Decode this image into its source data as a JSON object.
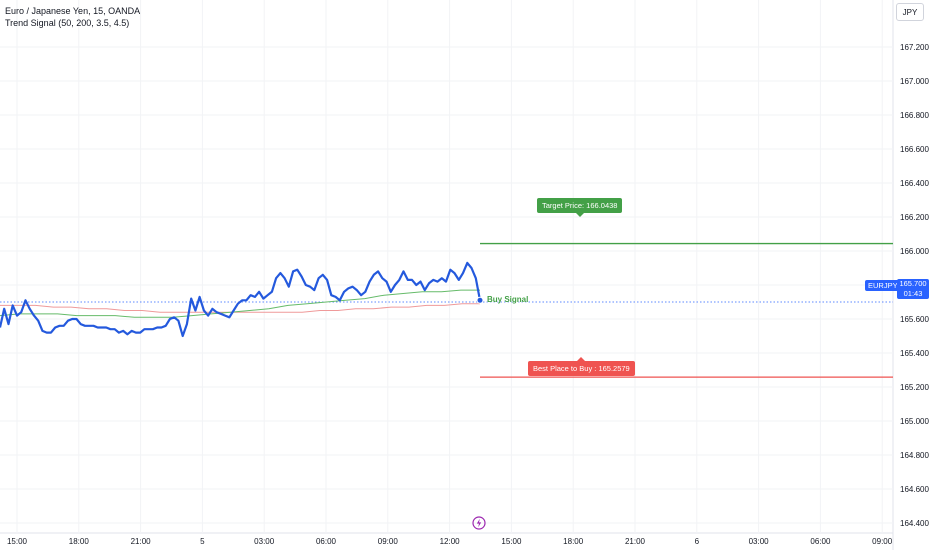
{
  "legend": {
    "title": "Euro / Japanese Yen, 15, OANDA",
    "indicator": "Trend Signal (50, 200, 3.5, 4.5)"
  },
  "currency": "JPY",
  "symbol_tag": "EURJPY",
  "price_tag": {
    "price": "165.700",
    "countdown": "01:43"
  },
  "annotations": {
    "target": "Target Price: 166.0438",
    "best_buy": "Best Place to Buy : 165.2579",
    "buy_signal": "Buy Signal"
  },
  "icons": {
    "flash": "lightning-bolt-icon"
  },
  "colors": {
    "price_line": "#2459dd",
    "ma_fast": "#66bb6a",
    "ma_slow": "#ef9a9a",
    "target": "#43a047",
    "stop": "#ef5350",
    "current_price_line": "#2962ff"
  },
  "chart_data": {
    "type": "line",
    "ylim": [
      164.3,
      167.3
    ],
    "y_ticks": [
      "167.200",
      "167.000",
      "166.800",
      "166.600",
      "166.400",
      "166.200",
      "166.000",
      "165.800",
      "165.600",
      "165.400",
      "165.200",
      "165.000",
      "164.800",
      "164.600",
      "164.400"
    ],
    "x_ticks": [
      "15:00",
      "18:00",
      "21:00",
      "5",
      "03:00",
      "06:00",
      "09:00",
      "12:00",
      "15:00",
      "18:00",
      "21:00",
      "6",
      "03:00",
      "06:00",
      "09:00"
    ],
    "current_price": 165.7,
    "target_price": 166.0438,
    "best_buy_price": 165.2579,
    "series": [
      {
        "values": [
          165.55,
          165.66,
          165.57,
          165.68,
          165.62,
          165.64,
          165.71,
          165.66,
          165.62,
          165.59,
          165.53,
          165.52,
          165.52,
          165.55,
          165.56,
          165.56,
          165.59,
          165.6,
          165.6,
          165.57,
          165.56,
          165.56,
          165.56,
          165.55,
          165.55,
          165.55,
          165.54,
          165.54,
          165.52,
          165.53,
          165.51,
          165.53,
          165.52,
          165.52,
          165.54,
          165.54,
          165.54,
          165.55,
          165.55,
          165.56,
          165.6,
          165.61,
          165.59,
          165.5,
          165.57,
          165.72,
          165.65,
          165.73,
          165.65,
          165.62,
          165.66,
          165.64,
          165.63,
          165.62,
          165.61,
          165.65,
          165.69,
          165.71,
          165.71,
          165.74,
          165.73,
          165.76,
          165.72,
          165.74,
          165.76,
          165.84,
          165.87,
          165.84,
          165.79,
          165.88,
          165.89,
          165.85,
          165.8,
          165.79,
          165.77,
          165.84,
          165.86,
          165.83,
          165.74,
          165.73,
          165.71,
          165.76,
          165.78,
          165.79,
          165.77,
          165.74,
          165.76,
          165.82,
          165.86,
          165.88,
          165.84,
          165.82,
          165.76,
          165.8,
          165.83,
          165.88,
          165.83,
          165.83,
          165.8,
          165.82,
          165.77,
          165.81,
          165.83,
          165.82,
          165.84,
          165.82,
          165.89,
          165.87,
          165.83,
          165.87,
          165.93,
          165.9,
          165.84,
          165.71
        ]
      },
      {
        "values": [
          165.62,
          165.63,
          165.63,
          165.63,
          165.62,
          165.62,
          165.62,
          165.61,
          165.61,
          165.61,
          165.62,
          165.63,
          165.64,
          165.65,
          165.66,
          165.68,
          165.69,
          165.7,
          165.71,
          165.72,
          165.74,
          165.75,
          165.76,
          165.76,
          165.77,
          165.77
        ]
      },
      {
        "values": [
          165.68,
          165.68,
          165.68,
          165.67,
          165.67,
          165.66,
          165.66,
          165.65,
          165.65,
          165.64,
          165.64,
          165.64,
          165.64,
          165.64,
          165.64,
          165.64,
          165.64,
          165.64,
          165.65,
          165.65,
          165.66,
          165.66,
          165.67,
          165.67,
          165.68,
          165.68,
          165.69,
          165.69
        ]
      }
    ]
  }
}
